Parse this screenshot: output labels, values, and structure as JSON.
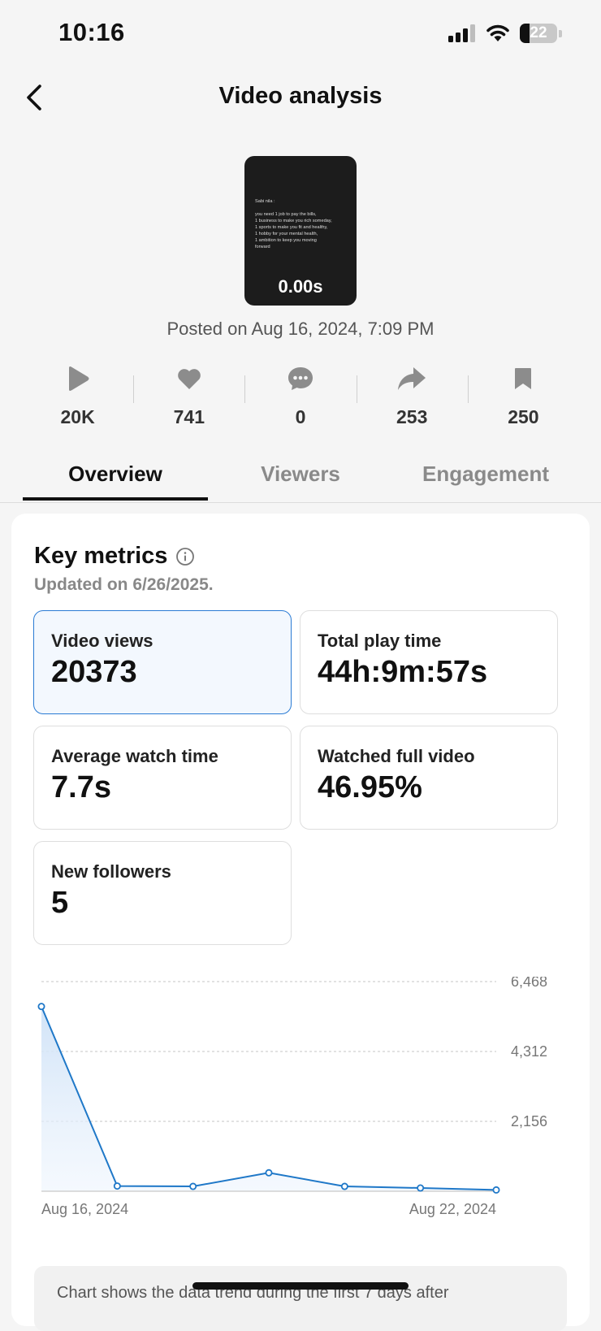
{
  "status": {
    "time": "10:16",
    "battery": "22"
  },
  "header": {
    "title": "Video analysis"
  },
  "video": {
    "duration": "0.00s",
    "posted": "Posted on Aug 16, 2024, 7:09 PM",
    "thumb_lines": [
      "Sabi nila :",
      "",
      "you need 1 job to pay the bills,",
      "1 business to make you rich someday,",
      "1 sports to make you fit and healthy,",
      "1 hobby for your mental health,",
      "1 ambition to keep you moving",
      "forward"
    ]
  },
  "stats": [
    {
      "icon": "play-icon",
      "value": "20K"
    },
    {
      "icon": "heart-icon",
      "value": "741"
    },
    {
      "icon": "comment-icon",
      "value": "0"
    },
    {
      "icon": "share-icon",
      "value": "253"
    },
    {
      "icon": "bookmark-icon",
      "value": "250"
    }
  ],
  "tabs": [
    "Overview",
    "Viewers",
    "Engagement"
  ],
  "active_tab": "Overview",
  "key_metrics": {
    "title": "Key metrics",
    "updated": "Updated on 6/26/2025.",
    "items": [
      {
        "label": "Video views",
        "value": "20373",
        "selected": true
      },
      {
        "label": "Total play time",
        "value": "44h:9m:57s",
        "selected": false
      },
      {
        "label": "Average watch time",
        "value": "7.7s",
        "selected": false
      },
      {
        "label": "Watched full video",
        "value": "46.95%",
        "selected": false
      },
      {
        "label": "New followers",
        "value": "5",
        "selected": false
      }
    ]
  },
  "chart_data": {
    "type": "area",
    "x": [
      "Aug 16, 2024",
      "Aug 17, 2024",
      "Aug 18, 2024",
      "Aug 19, 2024",
      "Aug 20, 2024",
      "Aug 21, 2024",
      "Aug 22, 2024"
    ],
    "x_tick_labels": [
      "Aug 16, 2024",
      "Aug 22, 2024"
    ],
    "values": [
      5700,
      160,
      150,
      570,
      150,
      100,
      40
    ],
    "y_ticks": [
      2156,
      4312,
      6468
    ],
    "y_tick_labels": [
      "2,156",
      "4,312",
      "6,468"
    ],
    "ylim": [
      0,
      6468
    ],
    "grid": true,
    "color": "#1f78c8"
  },
  "note": {
    "text": "Chart shows the data trend during the first 7 days after"
  }
}
